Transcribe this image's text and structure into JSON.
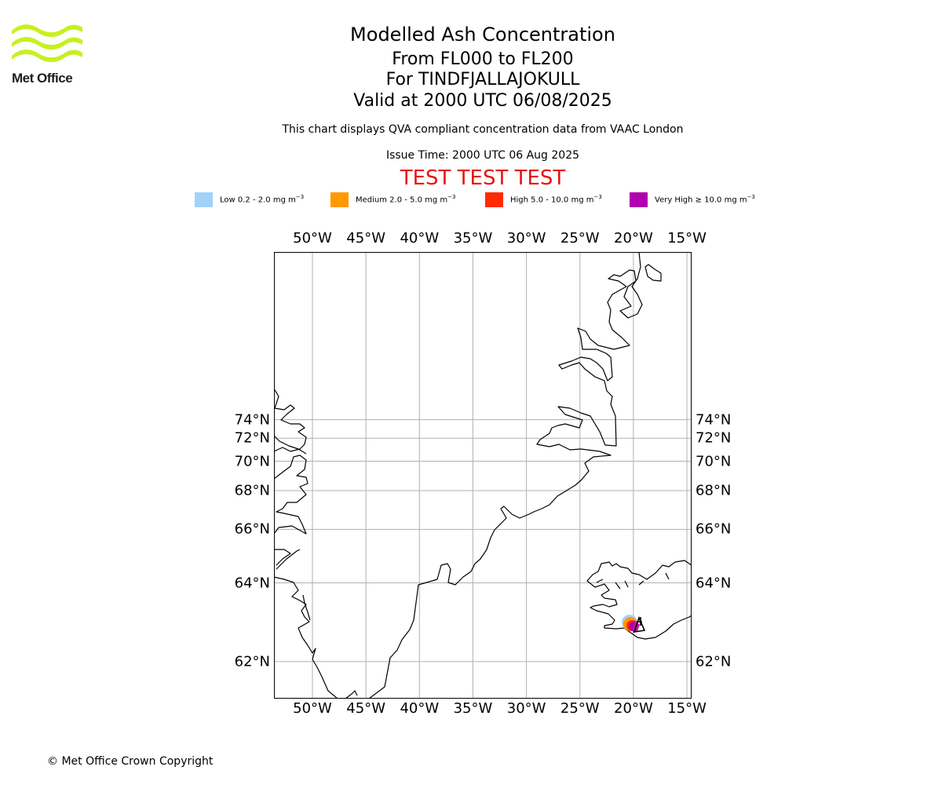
{
  "logo": {
    "text": "Met Office",
    "color": "#c8f020"
  },
  "title": {
    "line1": "Modelled Ash Concentration",
    "line2": "From FL000 to FL200",
    "line3": "For TINDFJALLAJOKULL",
    "line4": "Valid at 2000 UTC 06/08/2025"
  },
  "qva_note": "This chart displays QVA compliant concentration data from VAAC London",
  "issue_time": "Issue Time: 2000 UTC 06 Aug 2025",
  "test_banner": "TEST TEST TEST",
  "legend": [
    {
      "label": "Low 0.2 - 2.0 mg m",
      "exp": "−3",
      "color": "#a0d2fa"
    },
    {
      "label": "Medium 2.0 - 5.0 mg m",
      "exp": "−3",
      "color": "#ff9a00"
    },
    {
      "label": "High 5.0 - 10.0 mg m",
      "exp": "−3",
      "color": "#ff2a00"
    },
    {
      "label": "Very High ≥ 10.0 mg m",
      "exp": "−3",
      "color": "#b000b0"
    }
  ],
  "map": {
    "longitude_labels": [
      "50°W",
      "45°W",
      "40°W",
      "35°W",
      "30°W",
      "25°W",
      "20°W",
      "15°W"
    ],
    "longitudes": [
      -50,
      -45,
      -40,
      -35,
      -30,
      -25,
      -20,
      -15
    ],
    "latitude_labels": [
      "74°N",
      "72°N",
      "70°N",
      "68°N",
      "66°N",
      "64°N",
      "62°N"
    ],
    "latitudes": [
      74,
      72,
      70,
      68,
      66,
      64,
      62
    ],
    "gridlines": true,
    "volcano": {
      "name": "TINDFJALLAJOKULL",
      "lon": -19.6,
      "lat": 63.8
    }
  },
  "copyright": "© Met Office Crown Copyright"
}
